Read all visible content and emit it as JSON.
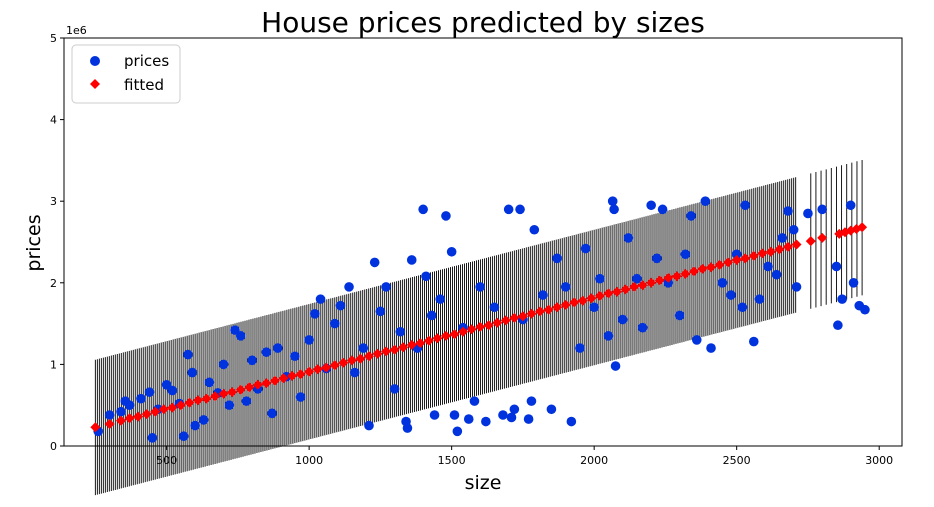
{
  "chart_data": {
    "type": "scatter",
    "title": "House prices predicted by sizes",
    "xlabel": "size",
    "ylabel": "prices",
    "offset_text": "1e6",
    "xlim": [
      140,
      3080
    ],
    "ylim": [
      0,
      5
    ],
    "xticks": [
      500,
      1000,
      1500,
      2000,
      2500,
      3000
    ],
    "xtick_labels": [
      "500",
      "1000",
      "1500",
      "2000",
      "2500",
      "3000"
    ],
    "yticks": [
      0,
      1,
      2,
      3,
      4,
      5
    ],
    "ytick_labels": [
      "0",
      "1",
      "2",
      "3",
      "4",
      "5"
    ],
    "grid": false,
    "legend_position": "top-left",
    "fit": {
      "slope_per_unit_x": 0.91,
      "intercept": 0.0
    },
    "error_bar_halfwidth": 0.83,
    "series": [
      {
        "name": "prices",
        "marker": "circle",
        "color": "#0033dd",
        "points": [
          [
            260,
            0.18
          ],
          [
            300,
            0.38
          ],
          [
            340,
            0.42
          ],
          [
            355,
            0.55
          ],
          [
            370,
            0.5
          ],
          [
            410,
            0.58
          ],
          [
            440,
            0.66
          ],
          [
            450,
            0.1
          ],
          [
            470,
            0.45
          ],
          [
            500,
            0.75
          ],
          [
            520,
            0.68
          ],
          [
            545,
            0.52
          ],
          [
            560,
            0.12
          ],
          [
            575,
            1.12
          ],
          [
            590,
            0.9
          ],
          [
            600,
            0.25
          ],
          [
            630,
            0.32
          ],
          [
            650,
            0.78
          ],
          [
            680,
            0.65
          ],
          [
            700,
            1.0
          ],
          [
            720,
            0.5
          ],
          [
            740,
            1.42
          ],
          [
            760,
            1.35
          ],
          [
            780,
            0.55
          ],
          [
            800,
            1.05
          ],
          [
            820,
            0.7
          ],
          [
            850,
            1.15
          ],
          [
            870,
            0.4
          ],
          [
            890,
            1.2
          ],
          [
            920,
            0.85
          ],
          [
            950,
            1.1
          ],
          [
            970,
            0.6
          ],
          [
            1000,
            1.3
          ],
          [
            1020,
            1.62
          ],
          [
            1040,
            1.8
          ],
          [
            1060,
            0.95
          ],
          [
            1090,
            1.5
          ],
          [
            1110,
            1.72
          ],
          [
            1140,
            1.95
          ],
          [
            1160,
            0.9
          ],
          [
            1190,
            1.2
          ],
          [
            1210,
            0.25
          ],
          [
            1230,
            2.25
          ],
          [
            1250,
            1.65
          ],
          [
            1270,
            1.95
          ],
          [
            1300,
            0.7
          ],
          [
            1320,
            1.4
          ],
          [
            1340,
            0.3
          ],
          [
            1345,
            0.22
          ],
          [
            1360,
            2.28
          ],
          [
            1380,
            1.2
          ],
          [
            1400,
            2.9
          ],
          [
            1410,
            2.08
          ],
          [
            1430,
            1.6
          ],
          [
            1440,
            0.38
          ],
          [
            1460,
            1.8
          ],
          [
            1480,
            2.82
          ],
          [
            1500,
            2.38
          ],
          [
            1510,
            0.38
          ],
          [
            1520,
            0.18
          ],
          [
            1540,
            1.45
          ],
          [
            1560,
            0.33
          ],
          [
            1580,
            0.55
          ],
          [
            1600,
            1.95
          ],
          [
            1620,
            0.3
          ],
          [
            1650,
            1.7
          ],
          [
            1680,
            0.38
          ],
          [
            1700,
            2.9
          ],
          [
            1710,
            0.35
          ],
          [
            1720,
            0.45
          ],
          [
            1740,
            2.9
          ],
          [
            1750,
            1.55
          ],
          [
            1770,
            0.33
          ],
          [
            1780,
            0.55
          ],
          [
            1790,
            2.65
          ],
          [
            1820,
            1.85
          ],
          [
            1850,
            0.45
          ],
          [
            1870,
            2.3
          ],
          [
            1900,
            1.95
          ],
          [
            1920,
            0.3
          ],
          [
            1950,
            1.2
          ],
          [
            1970,
            2.42
          ],
          [
            2000,
            1.7
          ],
          [
            2020,
            2.05
          ],
          [
            2050,
            1.35
          ],
          [
            2065,
            3.0
          ],
          [
            2070,
            2.9
          ],
          [
            2075,
            0.98
          ],
          [
            2100,
            1.55
          ],
          [
            2120,
            2.55
          ],
          [
            2150,
            2.05
          ],
          [
            2170,
            1.45
          ],
          [
            2200,
            2.95
          ],
          [
            2220,
            2.3
          ],
          [
            2240,
            2.9
          ],
          [
            2260,
            2.0
          ],
          [
            2300,
            1.6
          ],
          [
            2320,
            2.35
          ],
          [
            2340,
            2.82
          ],
          [
            2360,
            1.3
          ],
          [
            2390,
            3.0
          ],
          [
            2410,
            1.2
          ],
          [
            2450,
            2.0
          ],
          [
            2480,
            1.85
          ],
          [
            2500,
            2.35
          ],
          [
            2520,
            1.7
          ],
          [
            2530,
            2.95
          ],
          [
            2560,
            1.28
          ],
          [
            2580,
            1.8
          ],
          [
            2610,
            2.2
          ],
          [
            2640,
            2.1
          ],
          [
            2660,
            2.55
          ],
          [
            2680,
            2.88
          ],
          [
            2700,
            2.65
          ],
          [
            2710,
            1.95
          ],
          [
            2750,
            2.85
          ],
          [
            2800,
            2.9
          ],
          [
            2850,
            2.2
          ],
          [
            2855,
            1.48
          ],
          [
            2870,
            1.8
          ],
          [
            2900,
            2.95
          ],
          [
            2910,
            2.0
          ],
          [
            2930,
            1.72
          ],
          [
            2950,
            1.67
          ]
        ]
      },
      {
        "name": "fitted",
        "marker": "diamond",
        "color": "#ff0000",
        "points": [
          [
            250,
            0.23
          ],
          [
            300,
            0.27
          ],
          [
            340,
            0.31
          ],
          [
            370,
            0.34
          ],
          [
            400,
            0.36
          ],
          [
            430,
            0.39
          ],
          [
            460,
            0.42
          ],
          [
            490,
            0.45
          ],
          [
            520,
            0.47
          ],
          [
            550,
            0.5
          ],
          [
            580,
            0.53
          ],
          [
            610,
            0.56
          ],
          [
            640,
            0.58
          ],
          [
            670,
            0.61
          ],
          [
            700,
            0.64
          ],
          [
            730,
            0.66
          ],
          [
            760,
            0.69
          ],
          [
            790,
            0.72
          ],
          [
            820,
            0.75
          ],
          [
            850,
            0.77
          ],
          [
            880,
            0.8
          ],
          [
            910,
            0.83
          ],
          [
            940,
            0.86
          ],
          [
            970,
            0.88
          ],
          [
            1000,
            0.91
          ],
          [
            1030,
            0.94
          ],
          [
            1060,
            0.96
          ],
          [
            1090,
            0.99
          ],
          [
            1120,
            1.02
          ],
          [
            1150,
            1.05
          ],
          [
            1180,
            1.07
          ],
          [
            1210,
            1.1
          ],
          [
            1240,
            1.13
          ],
          [
            1270,
            1.16
          ],
          [
            1300,
            1.18
          ],
          [
            1330,
            1.21
          ],
          [
            1360,
            1.24
          ],
          [
            1390,
            1.26
          ],
          [
            1420,
            1.29
          ],
          [
            1450,
            1.32
          ],
          [
            1480,
            1.35
          ],
          [
            1510,
            1.37
          ],
          [
            1540,
            1.4
          ],
          [
            1570,
            1.43
          ],
          [
            1600,
            1.46
          ],
          [
            1630,
            1.48
          ],
          [
            1660,
            1.51
          ],
          [
            1690,
            1.54
          ],
          [
            1720,
            1.57
          ],
          [
            1750,
            1.59
          ],
          [
            1780,
            1.62
          ],
          [
            1810,
            1.65
          ],
          [
            1840,
            1.67
          ],
          [
            1870,
            1.7
          ],
          [
            1900,
            1.73
          ],
          [
            1930,
            1.76
          ],
          [
            1960,
            1.78
          ],
          [
            1990,
            1.81
          ],
          [
            2020,
            1.84
          ],
          [
            2050,
            1.87
          ],
          [
            2080,
            1.89
          ],
          [
            2110,
            1.92
          ],
          [
            2140,
            1.95
          ],
          [
            2170,
            1.97
          ],
          [
            2200,
            2.0
          ],
          [
            2230,
            2.03
          ],
          [
            2260,
            2.06
          ],
          [
            2290,
            2.08
          ],
          [
            2320,
            2.11
          ],
          [
            2350,
            2.14
          ],
          [
            2380,
            2.17
          ],
          [
            2410,
            2.19
          ],
          [
            2440,
            2.22
          ],
          [
            2470,
            2.25
          ],
          [
            2500,
            2.28
          ],
          [
            2530,
            2.3
          ],
          [
            2560,
            2.33
          ],
          [
            2590,
            2.36
          ],
          [
            2620,
            2.38
          ],
          [
            2650,
            2.41
          ],
          [
            2680,
            2.44
          ],
          [
            2710,
            2.47
          ],
          [
            2760,
            2.51
          ],
          [
            2800,
            2.55
          ],
          [
            2860,
            2.6
          ],
          [
            2880,
            2.62
          ],
          [
            2900,
            2.64
          ],
          [
            2920,
            2.66
          ],
          [
            2940,
            2.68
          ]
        ]
      }
    ]
  }
}
